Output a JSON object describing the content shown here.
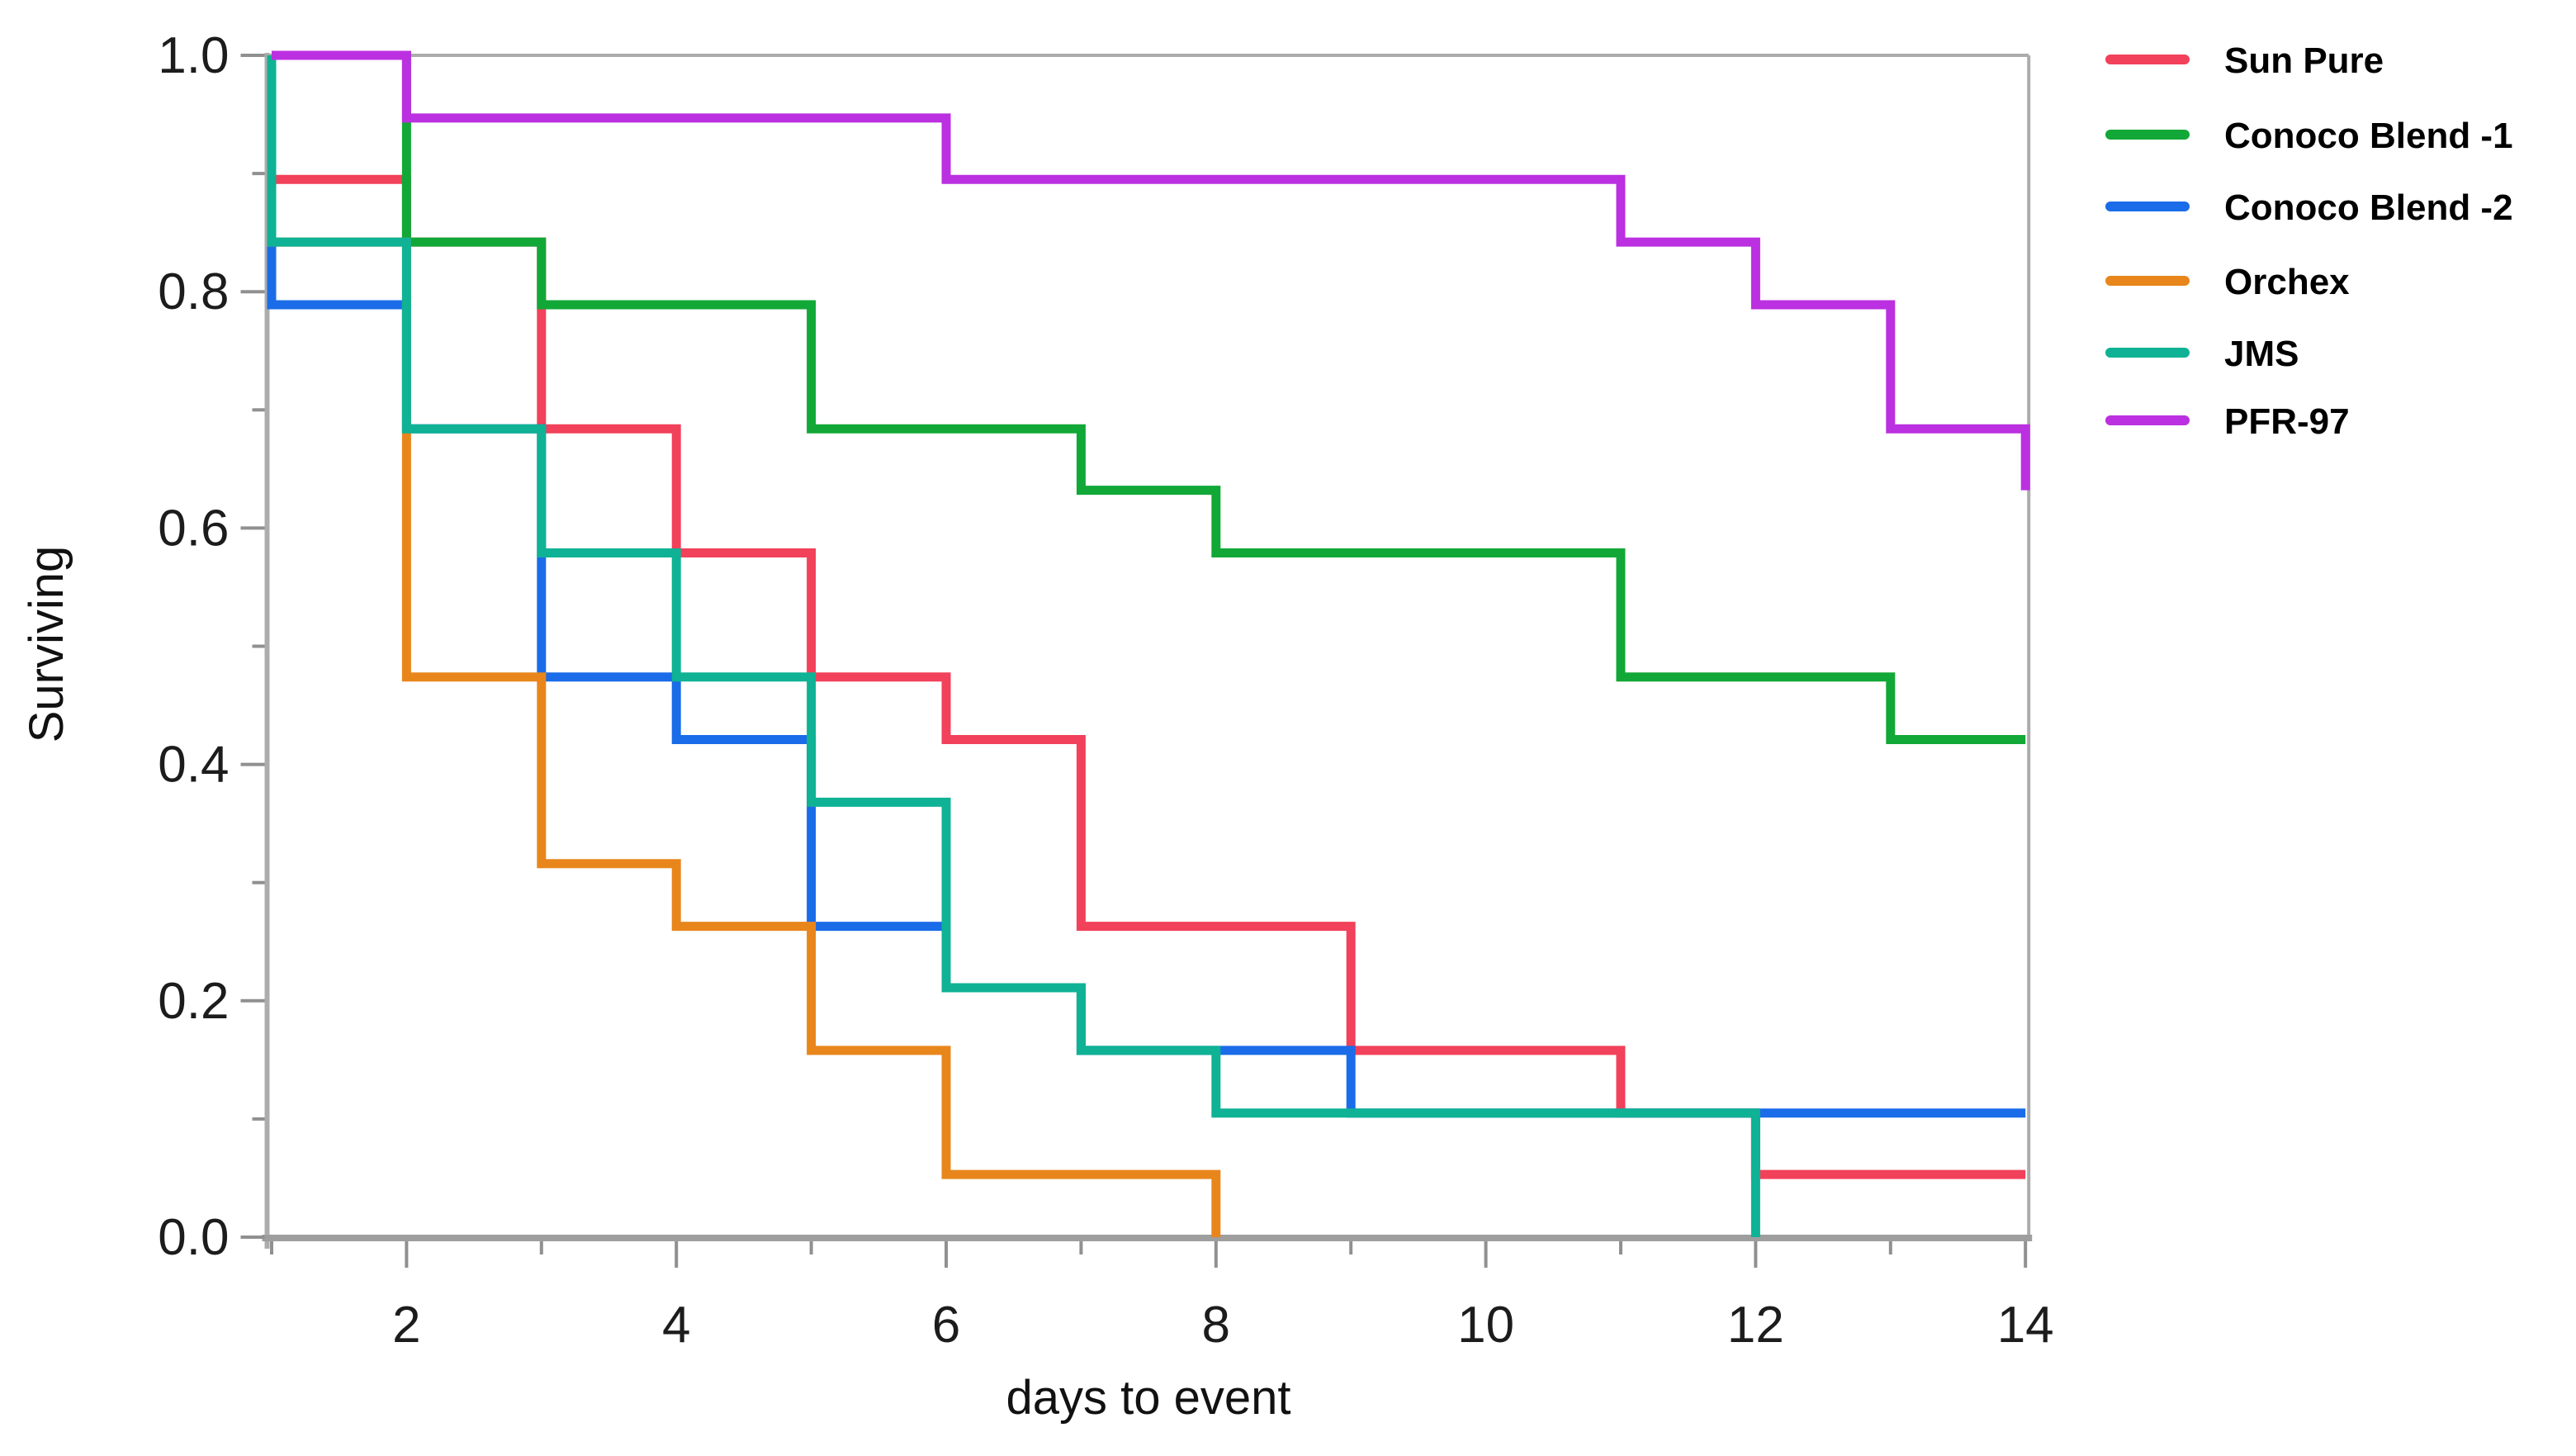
{
  "page": {
    "background": "#ffffff"
  },
  "chart_data": {
    "type": "line",
    "subtype": "kaplan-meier-step-survival",
    "title": "",
    "xlabel": "days to event",
    "ylabel": "Surviving",
    "xlim": [
      1,
      14
    ],
    "ylim": [
      0.0,
      1.0
    ],
    "grid": false,
    "step_mode": "after",
    "x_major_ticks": [
      2,
      4,
      6,
      8,
      10,
      12,
      14
    ],
    "x_minor_ticks": [
      1,
      3,
      5,
      7,
      9,
      11,
      13
    ],
    "y_major_ticks": [
      {
        "v": 1.0,
        "label": "1.0"
      },
      {
        "v": 0.8,
        "label": "0.8"
      },
      {
        "v": 0.6,
        "label": "0.6"
      },
      {
        "v": 0.4,
        "label": "0.4"
      },
      {
        "v": 0.2,
        "label": "0.2"
      },
      {
        "v": 0.0,
        "label": "0.0"
      }
    ],
    "y_minor_ticks": [
      0.9,
      0.7,
      0.5,
      0.3,
      0.1
    ],
    "legend_position": "outside-top-right",
    "series": [
      {
        "name": "Sun Pure",
        "color": "#F2415A",
        "start": [
          1,
          1.0
        ],
        "drops": [
          [
            1,
            0.895
          ],
          [
            2,
            0.842
          ],
          [
            3,
            0.684
          ],
          [
            4,
            0.579
          ],
          [
            5,
            0.474
          ],
          [
            6,
            0.421
          ],
          [
            7,
            0.263
          ],
          [
            9,
            0.158
          ],
          [
            11,
            0.105
          ],
          [
            12,
            0.053
          ]
        ],
        "end_day": 14
      },
      {
        "name": "Conoco Blend -1",
        "color": "#12A837",
        "start": [
          1,
          1.0
        ],
        "drops": [
          [
            2,
            0.842
          ],
          [
            3,
            0.789
          ],
          [
            5,
            0.684
          ],
          [
            7,
            0.632
          ],
          [
            8,
            0.579
          ],
          [
            11,
            0.474
          ],
          [
            13,
            0.421
          ]
        ],
        "end_day": 14
      },
      {
        "name": "Conoco Blend -2",
        "color": "#1B6CE8",
        "start": [
          1,
          1.0
        ],
        "drops": [
          [
            1,
            0.789
          ],
          [
            2,
            0.684
          ],
          [
            3,
            0.474
          ],
          [
            4,
            0.421
          ],
          [
            5,
            0.263
          ],
          [
            6,
            0.211
          ],
          [
            7,
            0.158
          ],
          [
            9,
            0.105
          ]
        ],
        "end_day": 14
      },
      {
        "name": "Orchex",
        "color": "#E8861C",
        "start": [
          1,
          1.0
        ],
        "drops": [
          [
            1,
            0.842
          ],
          [
            2,
            0.474
          ],
          [
            3,
            0.316
          ],
          [
            4,
            0.263
          ],
          [
            5,
            0.158
          ],
          [
            6,
            0.053
          ],
          [
            8,
            0.0
          ]
        ],
        "end_day": 8
      },
      {
        "name": "JMS",
        "color": "#0FB294",
        "start": [
          1,
          1.0
        ],
        "drops": [
          [
            1,
            0.842
          ],
          [
            2,
            0.684
          ],
          [
            3,
            0.579
          ],
          [
            4,
            0.474
          ],
          [
            5,
            0.368
          ],
          [
            6,
            0.211
          ],
          [
            7,
            0.158
          ],
          [
            8,
            0.105
          ],
          [
            12,
            0.0
          ]
        ],
        "end_day": 12
      },
      {
        "name": "PFR-97",
        "color": "#BB30E0",
        "start": [
          1,
          1.0
        ],
        "drops": [
          [
            2,
            0.947
          ],
          [
            6,
            0.895
          ],
          [
            11,
            0.842
          ],
          [
            12,
            0.789
          ],
          [
            13,
            0.684
          ],
          [
            14,
            0.632
          ]
        ],
        "end_day": 14
      }
    ],
    "style": {
      "frame_color": "#ACACAC",
      "axis_color": "#9E9E9E",
      "tick_color": "#909090",
      "tick_label_color": "#1C1C1C",
      "axis_title_color": "#111111",
      "legend_label_color": "#000000",
      "curve_width": 11
    }
  },
  "legend": {
    "items": [
      {
        "label": "Sun Pure",
        "color": "#F2415A"
      },
      {
        "label": "Conoco Blend -1",
        "color": "#12A837"
      },
      {
        "label": "Conoco Blend -2",
        "color": "#1B6CE8"
      },
      {
        "label": "Orchex",
        "color": "#E8861C"
      },
      {
        "label": "JMS",
        "color": "#0FB294"
      },
      {
        "label": "PFR-97",
        "color": "#BB30E0"
      }
    ]
  }
}
